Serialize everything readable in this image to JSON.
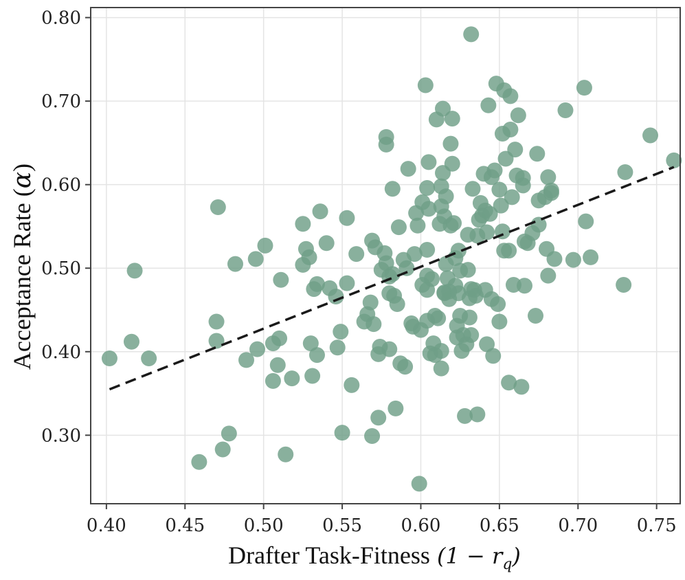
{
  "chart_data": {
    "type": "scatter",
    "xlabel": "Drafter Task-Fitness",
    "xlabel_math": "(1 − r",
    "xlabel_math_sub": "q",
    "xlabel_math_close": ")",
    "ylabel": "Acceptance Rate (",
    "ylabel_math": "α",
    "ylabel_close": ")",
    "xlim": [
      0.39,
      0.765
    ],
    "ylim": [
      0.218,
      0.812
    ],
    "xticks": [
      0.4,
      0.45,
      0.5,
      0.55,
      0.6,
      0.65,
      0.7,
      0.75
    ],
    "xtick_labels": [
      "0.40",
      "0.45",
      "0.50",
      "0.55",
      "0.60",
      "0.65",
      "0.70",
      "0.75"
    ],
    "yticks": [
      0.3,
      0.4,
      0.5,
      0.6,
      0.7,
      0.8
    ],
    "ytick_labels": [
      "0.30",
      "0.40",
      "0.50",
      "0.60",
      "0.70",
      "0.80"
    ],
    "grid": true,
    "colors": {
      "points": "#6f9f87",
      "trend": "#1a1a1a",
      "grid": "#e4e4e4",
      "frame": "#444444"
    },
    "trendline": {
      "x": [
        0.402,
        0.761
      ],
      "y": [
        0.355,
        0.621
      ],
      "style": "dashed"
    },
    "points": [
      [
        0.402,
        0.392
      ],
      [
        0.416,
        0.412
      ],
      [
        0.418,
        0.497
      ],
      [
        0.427,
        0.392
      ],
      [
        0.459,
        0.268
      ],
      [
        0.47,
        0.436
      ],
      [
        0.47,
        0.413
      ],
      [
        0.471,
        0.573
      ],
      [
        0.474,
        0.283
      ],
      [
        0.478,
        0.302
      ],
      [
        0.482,
        0.505
      ],
      [
        0.489,
        0.39
      ],
      [
        0.495,
        0.511
      ],
      [
        0.496,
        0.403
      ],
      [
        0.501,
        0.527
      ],
      [
        0.506,
        0.365
      ],
      [
        0.506,
        0.41
      ],
      [
        0.509,
        0.384
      ],
      [
        0.51,
        0.416
      ],
      [
        0.511,
        0.486
      ],
      [
        0.514,
        0.277
      ],
      [
        0.518,
        0.368
      ],
      [
        0.525,
        0.553
      ],
      [
        0.525,
        0.504
      ],
      [
        0.527,
        0.523
      ],
      [
        0.529,
        0.513
      ],
      [
        0.53,
        0.41
      ],
      [
        0.531,
        0.371
      ],
      [
        0.532,
        0.475
      ],
      [
        0.534,
        0.481
      ],
      [
        0.534,
        0.396
      ],
      [
        0.536,
        0.568
      ],
      [
        0.54,
        0.53
      ],
      [
        0.542,
        0.476
      ],
      [
        0.546,
        0.466
      ],
      [
        0.547,
        0.405
      ],
      [
        0.549,
        0.424
      ],
      [
        0.55,
        0.303
      ],
      [
        0.553,
        0.56
      ],
      [
        0.553,
        0.482
      ],
      [
        0.556,
        0.36
      ],
      [
        0.559,
        0.517
      ],
      [
        0.564,
        0.436
      ],
      [
        0.566,
        0.445
      ],
      [
        0.568,
        0.459
      ],
      [
        0.569,
        0.299
      ],
      [
        0.569,
        0.533
      ],
      [
        0.57,
        0.433
      ],
      [
        0.571,
        0.525
      ],
      [
        0.573,
        0.397
      ],
      [
        0.573,
        0.321
      ],
      [
        0.574,
        0.406
      ],
      [
        0.575,
        0.498
      ],
      [
        0.577,
        0.518
      ],
      [
        0.578,
        0.657
      ],
      [
        0.578,
        0.648
      ],
      [
        0.578,
        0.506
      ],
      [
        0.58,
        0.403
      ],
      [
        0.58,
        0.47
      ],
      [
        0.58,
        0.49
      ],
      [
        0.582,
        0.493
      ],
      [
        0.582,
        0.595
      ],
      [
        0.583,
        0.467
      ],
      [
        0.584,
        0.332
      ],
      [
        0.585,
        0.457
      ],
      [
        0.586,
        0.549
      ],
      [
        0.587,
        0.386
      ],
      [
        0.589,
        0.51
      ],
      [
        0.59,
        0.382
      ],
      [
        0.591,
        0.5
      ],
      [
        0.592,
        0.619
      ],
      [
        0.594,
        0.434
      ],
      [
        0.595,
        0.43
      ],
      [
        0.596,
        0.517
      ],
      [
        0.597,
        0.566
      ],
      [
        0.598,
        0.551
      ],
      [
        0.599,
        0.242
      ],
      [
        0.6,
        0.426
      ],
      [
        0.601,
        0.579
      ],
      [
        0.601,
        0.48
      ],
      [
        0.603,
        0.719
      ],
      [
        0.604,
        0.474
      ],
      [
        0.604,
        0.491
      ],
      [
        0.604,
        0.437
      ],
      [
        0.604,
        0.522
      ],
      [
        0.604,
        0.596
      ],
      [
        0.605,
        0.627
      ],
      [
        0.605,
        0.571
      ],
      [
        0.606,
        0.398
      ],
      [
        0.607,
        0.487
      ],
      [
        0.608,
        0.41
      ],
      [
        0.609,
        0.396
      ],
      [
        0.609,
        0.443
      ],
      [
        0.61,
        0.678
      ],
      [
        0.611,
        0.44
      ],
      [
        0.612,
        0.553
      ],
      [
        0.613,
        0.574
      ],
      [
        0.613,
        0.598
      ],
      [
        0.613,
        0.38
      ],
      [
        0.613,
        0.401
      ],
      [
        0.614,
        0.691
      ],
      [
        0.614,
        0.614
      ],
      [
        0.615,
        0.47
      ],
      [
        0.615,
        0.562
      ],
      [
        0.615,
        0.471
      ],
      [
        0.616,
        0.586
      ],
      [
        0.616,
        0.505
      ],
      [
        0.617,
        0.488
      ],
      [
        0.618,
        0.463
      ],
      [
        0.618,
        0.472
      ],
      [
        0.619,
        0.551
      ],
      [
        0.619,
        0.649
      ],
      [
        0.62,
        0.625
      ],
      [
        0.62,
        0.679
      ],
      [
        0.621,
        0.554
      ],
      [
        0.622,
        0.479
      ],
      [
        0.622,
        0.512
      ],
      [
        0.623,
        0.431
      ],
      [
        0.623,
        0.417
      ],
      [
        0.624,
        0.521
      ],
      [
        0.624,
        0.47
      ],
      [
        0.625,
        0.443
      ],
      [
        0.625,
        0.497
      ],
      [
        0.626,
        0.401
      ],
      [
        0.627,
        0.42
      ],
      [
        0.628,
        0.323
      ],
      [
        0.629,
        0.409
      ],
      [
        0.63,
        0.498
      ],
      [
        0.63,
        0.54
      ],
      [
        0.631,
        0.464
      ],
      [
        0.631,
        0.441
      ],
      [
        0.632,
        0.78
      ],
      [
        0.632,
        0.42
      ],
      [
        0.632,
        0.475
      ],
      [
        0.633,
        0.595
      ],
      [
        0.634,
        0.474
      ],
      [
        0.635,
        0.467
      ],
      [
        0.636,
        0.325
      ],
      [
        0.636,
        0.539
      ],
      [
        0.637,
        0.558
      ],
      [
        0.638,
        0.578
      ],
      [
        0.639,
        0.563
      ],
      [
        0.64,
        0.613
      ],
      [
        0.641,
        0.569
      ],
      [
        0.641,
        0.474
      ],
      [
        0.642,
        0.409
      ],
      [
        0.642,
        0.543
      ],
      [
        0.643,
        0.695
      ],
      [
        0.644,
        0.565
      ],
      [
        0.645,
        0.609
      ],
      [
        0.645,
        0.463
      ],
      [
        0.646,
        0.395
      ],
      [
        0.647,
        0.617
      ],
      [
        0.648,
        0.721
      ],
      [
        0.649,
        0.457
      ],
      [
        0.65,
        0.436
      ],
      [
        0.65,
        0.594
      ],
      [
        0.651,
        0.575
      ],
      [
        0.652,
        0.661
      ],
      [
        0.652,
        0.544
      ],
      [
        0.653,
        0.521
      ],
      [
        0.653,
        0.713
      ],
      [
        0.654,
        0.631
      ],
      [
        0.656,
        0.363
      ],
      [
        0.656,
        0.521
      ],
      [
        0.657,
        0.706
      ],
      [
        0.657,
        0.666
      ],
      [
        0.658,
        0.585
      ],
      [
        0.659,
        0.48
      ],
      [
        0.66,
        0.642
      ],
      [
        0.661,
        0.611
      ],
      [
        0.662,
        0.683
      ],
      [
        0.664,
        0.358
      ],
      [
        0.665,
        0.608
      ],
      [
        0.665,
        0.599
      ],
      [
        0.666,
        0.479
      ],
      [
        0.666,
        0.532
      ],
      [
        0.668,
        0.53
      ],
      [
        0.671,
        0.542
      ],
      [
        0.673,
        0.443
      ],
      [
        0.674,
        0.637
      ],
      [
        0.675,
        0.581
      ],
      [
        0.675,
        0.552
      ],
      [
        0.679,
        0.585
      ],
      [
        0.68,
        0.523
      ],
      [
        0.681,
        0.491
      ],
      [
        0.681,
        0.609
      ],
      [
        0.683,
        0.59
      ],
      [
        0.683,
        0.593
      ],
      [
        0.685,
        0.511
      ],
      [
        0.692,
        0.689
      ],
      [
        0.697,
        0.51
      ],
      [
        0.704,
        0.716
      ],
      [
        0.705,
        0.556
      ],
      [
        0.708,
        0.513
      ],
      [
        0.729,
        0.48
      ],
      [
        0.73,
        0.615
      ],
      [
        0.746,
        0.659
      ],
      [
        0.761,
        0.629
      ]
    ]
  }
}
